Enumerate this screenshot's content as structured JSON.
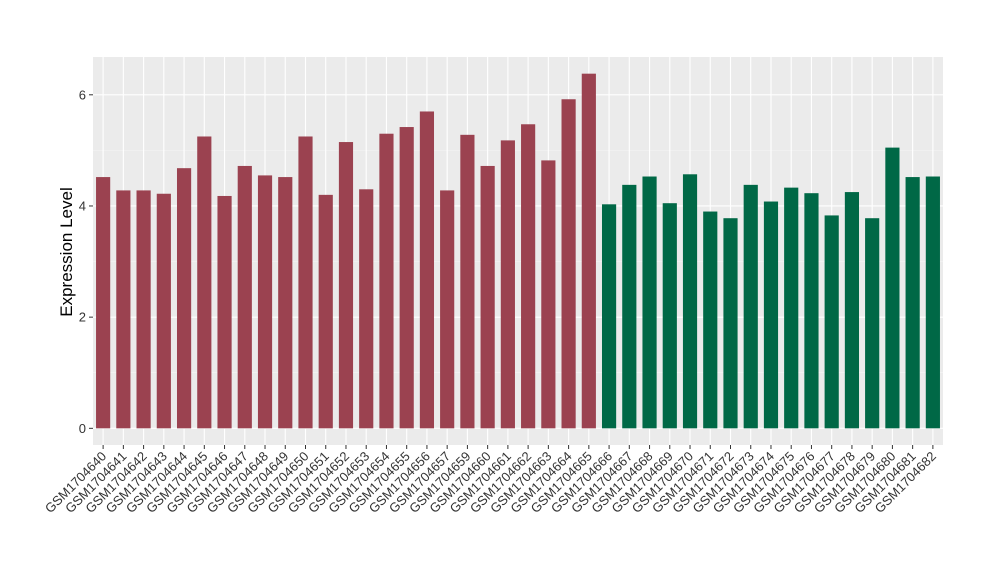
{
  "chart_data": {
    "type": "bar",
    "title": "",
    "xlabel": "",
    "ylabel": "Expression Level",
    "ylim": [
      -0.3,
      6.68
    ],
    "yticks": [
      0,
      2,
      4,
      6
    ],
    "grid": true,
    "legend": "none",
    "colors": {
      "panel_background": "#EBEBEB",
      "grid_major": "#FFFFFF",
      "group1": "#9B4250",
      "group2": "#006846"
    },
    "categories": [
      "GSM1704640",
      "GSM1704641",
      "GSM1704642",
      "GSM1704643",
      "GSM1704644",
      "GSM1704645",
      "GSM1704646",
      "GSM1704647",
      "GSM1704648",
      "GSM1704649",
      "GSM1704650",
      "GSM1704651",
      "GSM1704652",
      "GSM1704653",
      "GSM1704654",
      "GSM1704655",
      "GSM1704656",
      "GSM1704657",
      "GSM1704659",
      "GSM1704660",
      "GSM1704661",
      "GSM1704662",
      "GSM1704663",
      "GSM1704664",
      "GSM1704665",
      "GSM1704666",
      "GSM1704667",
      "GSM1704668",
      "GSM1704669",
      "GSM1704670",
      "GSM1704671",
      "GSM1704672",
      "GSM1704673",
      "GSM1704674",
      "GSM1704675",
      "GSM1704676",
      "GSM1704677",
      "GSM1704678",
      "GSM1704679",
      "GSM1704680",
      "GSM1704681",
      "GSM1704682"
    ],
    "values": [
      4.52,
      4.28,
      4.28,
      4.22,
      4.68,
      5.25,
      4.18,
      4.72,
      4.55,
      4.52,
      5.25,
      4.2,
      5.15,
      4.3,
      5.3,
      5.42,
      5.7,
      4.28,
      5.28,
      4.72,
      5.18,
      5.47,
      4.82,
      5.92,
      6.38,
      4.03,
      4.38,
      4.53,
      4.05,
      4.57,
      3.9,
      3.78,
      4.38,
      4.08,
      4.33,
      4.23,
      3.83,
      4.25,
      3.78,
      5.05,
      4.52,
      4.53
    ],
    "groups": [
      1,
      1,
      1,
      1,
      1,
      1,
      1,
      1,
      1,
      1,
      1,
      1,
      1,
      1,
      1,
      1,
      1,
      1,
      1,
      1,
      1,
      1,
      1,
      1,
      1,
      2,
      2,
      2,
      2,
      2,
      2,
      2,
      2,
      2,
      2,
      2,
      2,
      2,
      2,
      2,
      2,
      2
    ]
  }
}
